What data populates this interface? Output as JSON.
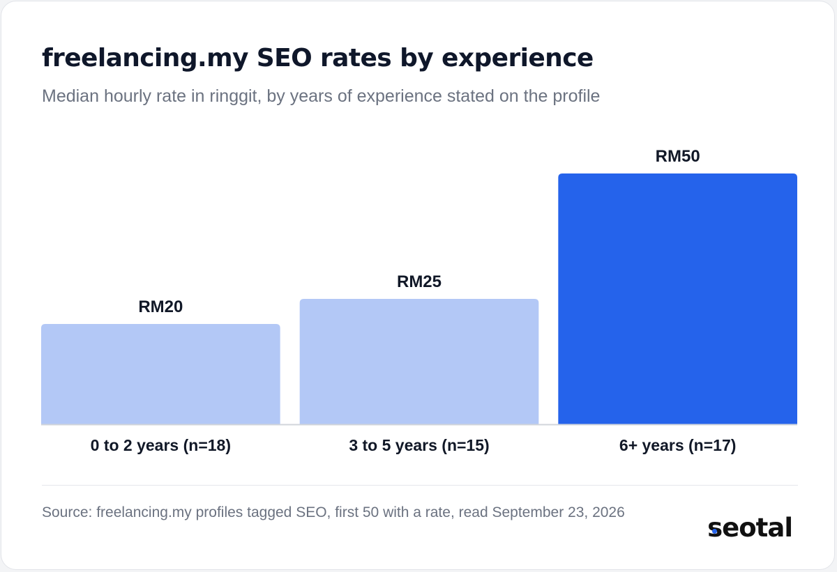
{
  "header": {
    "title": "freelancing.my SEO rates by experience",
    "subtitle": "Median hourly rate in ringgit, by years of experience stated on the profile"
  },
  "chart_data": {
    "type": "bar",
    "title": "freelancing.my SEO rates by experience",
    "subtitle": "Median hourly rate in ringgit, by years of experience stated on the profile",
    "categories": [
      "0 to 2 years (n=18)",
      "3 to 5 years (n=15)",
      "6+ years (n=17)"
    ],
    "values": [
      20,
      25,
      50
    ],
    "value_labels": [
      "RM20",
      "RM25",
      "RM50"
    ],
    "highlight_index": 2,
    "ylim": [
      0,
      50
    ],
    "xlabel": "",
    "ylabel": "",
    "grid": false,
    "legend": "none"
  },
  "footer": {
    "source": "Source: freelancing.my profiles tagged SEO, first 50 with a rate, read September 23, 2026",
    "logo_text": "seotal"
  },
  "colors": {
    "bar": "#b3c8f6",
    "bar_highlight": "#2563eb",
    "title_text": "#0f172a",
    "subtitle_text": "#6b7280",
    "value_text": "#111827",
    "baseline": "#d1d5db",
    "source_text": "#6b7280",
    "logo_text": "#111111",
    "logo_dot": "#2563eb"
  }
}
